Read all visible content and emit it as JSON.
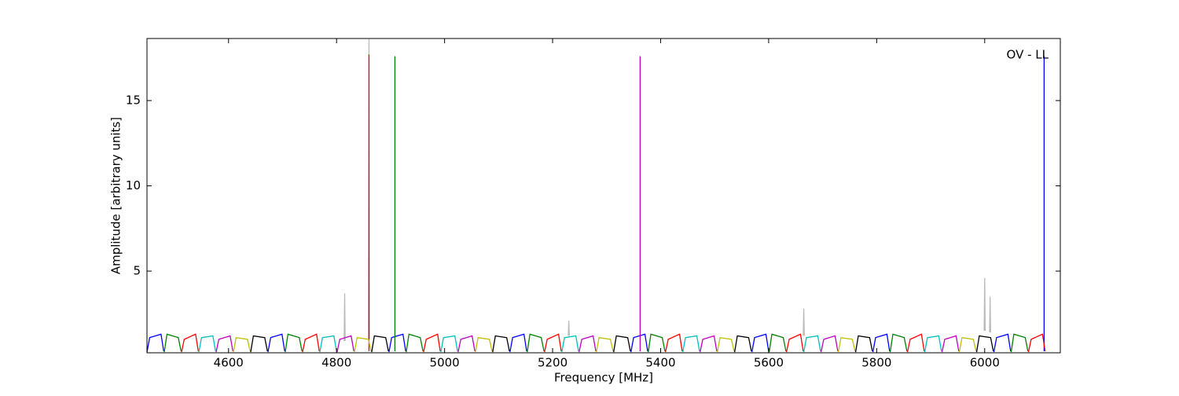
{
  "chart_data": {
    "type": "line",
    "annotation": "OV - LL",
    "xlabel": "Frequency [MHz]",
    "ylabel": "Amplitude [arbitrary units]",
    "xlim": [
      4449,
      6140
    ],
    "ylim": [
      0.21,
      18.64
    ],
    "xticks": [
      4600,
      4800,
      5000,
      5200,
      5400,
      5600,
      5800,
      6000
    ],
    "yticks": [
      5,
      10,
      15
    ],
    "series": [
      {
        "color": "#bbbbbb",
        "x": [
          4814,
          4815,
          4816,
          null,
          4859,
          4860,
          4861,
          null,
          5229,
          5230,
          5231,
          null,
          5664,
          5665,
          5666,
          null,
          5999,
          6000,
          6001,
          null,
          6009,
          6010,
          6011
        ],
        "values": [
          0.9,
          3.7,
          0.9,
          null,
          1.0,
          18.6,
          1.0,
          null,
          1.2,
          2.1,
          1.2,
          null,
          1.2,
          2.8,
          1.2,
          null,
          1.5,
          4.6,
          1.5,
          null,
          1.4,
          3.5,
          1.4
        ]
      },
      {
        "color": "#0000ff",
        "x": [
          4449,
          4454,
          4475,
          4480,
          null,
          4673,
          4678,
          4699,
          4704,
          null,
          4897,
          4902,
          4923,
          4928,
          null,
          5121,
          5126,
          5147,
          5152,
          null,
          5345,
          5350,
          5371,
          5376,
          null,
          5569,
          5574,
          5595,
          5600,
          null,
          5793,
          5798,
          5819,
          5824,
          null,
          6017,
          6022,
          6043,
          6048,
          null,
          6110,
          6110
        ],
        "values": [
          0.25,
          1.1,
          1.3,
          0.3,
          null,
          0.25,
          1.1,
          1.3,
          0.3,
          null,
          0.25,
          1.1,
          1.3,
          0.3,
          null,
          0.25,
          1.1,
          1.3,
          0.3,
          null,
          0.25,
          1.1,
          1.3,
          0.3,
          null,
          0.25,
          1.1,
          1.3,
          0.3,
          null,
          0.25,
          1.1,
          1.3,
          0.3,
          null,
          0.25,
          1.1,
          1.3,
          0.3,
          null,
          0.3,
          17.6
        ]
      },
      {
        "color": "#008000",
        "x": [
          4481,
          4486,
          4507,
          4512,
          null,
          4705,
          4710,
          4731,
          4736,
          null,
          4929,
          4934,
          4955,
          4960,
          null,
          5153,
          5158,
          5179,
          5184,
          null,
          5377,
          5382,
          5403,
          5408,
          null,
          5601,
          5606,
          5627,
          5632,
          null,
          5825,
          5830,
          5851,
          5856,
          null,
          6049,
          6054,
          6075,
          6080,
          null,
          4908,
          4908
        ],
        "values": [
          0.25,
          1.3,
          1.1,
          0.3,
          null,
          0.25,
          1.3,
          1.1,
          0.3,
          null,
          0.25,
          1.3,
          1.1,
          0.3,
          null,
          0.25,
          1.3,
          1.1,
          0.3,
          null,
          0.25,
          1.3,
          1.1,
          0.3,
          null,
          0.25,
          1.3,
          1.1,
          0.3,
          null,
          0.25,
          1.3,
          1.1,
          0.3,
          null,
          0.25,
          1.3,
          1.1,
          0.3,
          null,
          0.3,
          17.6
        ]
      },
      {
        "color": "#ff0000",
        "x": [
          4513,
          4518,
          4539,
          4544,
          null,
          4737,
          4742,
          4763,
          4768,
          null,
          4961,
          4966,
          4987,
          4992,
          null,
          5185,
          5190,
          5211,
          5216,
          null,
          5409,
          5414,
          5435,
          5440,
          null,
          5633,
          5638,
          5659,
          5664,
          null,
          5857,
          5862,
          5883,
          5888,
          null,
          6081,
          6086,
          6107,
          6112,
          null,
          4860,
          4860
        ],
        "values": [
          0.25,
          1.0,
          1.3,
          0.3,
          null,
          0.25,
          1.0,
          1.3,
          0.3,
          null,
          0.25,
          1.0,
          1.3,
          0.3,
          null,
          0.25,
          1.0,
          1.3,
          0.3,
          null,
          0.25,
          1.0,
          1.3,
          0.3,
          null,
          0.25,
          1.0,
          1.3,
          0.3,
          null,
          0.25,
          1.0,
          1.3,
          0.3,
          null,
          0.25,
          1.0,
          1.3,
          0.3,
          null,
          0.3,
          17.7
        ]
      },
      {
        "color": "#00bfbf",
        "x": [
          4545,
          4550,
          4571,
          4576,
          null,
          4769,
          4774,
          4795,
          4800,
          null,
          4993,
          4998,
          5019,
          5024,
          null,
          5217,
          5222,
          5243,
          5248,
          null,
          5441,
          5446,
          5467,
          5472,
          null,
          5665,
          5670,
          5691,
          5696,
          null,
          5889,
          5894,
          5915,
          5920
        ],
        "values": [
          0.25,
          1.1,
          1.2,
          0.3,
          null,
          0.25,
          1.1,
          1.2,
          0.3,
          null,
          0.25,
          1.1,
          1.2,
          0.3,
          null,
          0.25,
          1.1,
          1.2,
          0.3,
          null,
          0.25,
          1.1,
          1.2,
          0.3,
          null,
          0.25,
          1.1,
          1.2,
          0.3,
          null,
          0.25,
          1.1,
          1.2,
          0.3
        ]
      },
      {
        "color": "#bf00bf",
        "x": [
          4577,
          4582,
          4603,
          4608,
          null,
          4801,
          4806,
          4827,
          4832,
          null,
          5025,
          5030,
          5051,
          5056,
          null,
          5249,
          5254,
          5275,
          5280,
          null,
          5473,
          5478,
          5499,
          5504,
          null,
          5697,
          5702,
          5723,
          5728,
          null,
          5921,
          5926,
          5947,
          5952,
          null,
          5362,
          5362
        ],
        "values": [
          0.25,
          1.0,
          1.2,
          0.3,
          null,
          0.25,
          1.0,
          1.2,
          0.3,
          null,
          0.25,
          1.0,
          1.2,
          0.3,
          null,
          0.25,
          1.0,
          1.2,
          0.3,
          null,
          0.25,
          1.0,
          1.2,
          0.3,
          null,
          0.25,
          1.0,
          1.2,
          0.3,
          null,
          0.25,
          1.0,
          1.2,
          0.3,
          null,
          0.3,
          17.6
        ]
      },
      {
        "color": "#bfbf00",
        "x": [
          4609,
          4614,
          4635,
          4640,
          null,
          4833,
          4838,
          4859,
          4864,
          null,
          5057,
          5062,
          5083,
          5088,
          null,
          5281,
          5286,
          5307,
          5312,
          null,
          5505,
          5510,
          5531,
          5536,
          null,
          5729,
          5734,
          5755,
          5760,
          null,
          5953,
          5958,
          5979,
          5984
        ],
        "values": [
          0.25,
          1.1,
          1.0,
          0.3,
          null,
          0.25,
          1.1,
          1.0,
          0.3,
          null,
          0.25,
          1.1,
          1.0,
          0.3,
          null,
          0.25,
          1.1,
          1.0,
          0.3,
          null,
          0.25,
          1.1,
          1.0,
          0.3,
          null,
          0.25,
          1.1,
          1.0,
          0.3,
          null,
          0.25,
          1.1,
          1.0,
          0.3
        ]
      },
      {
        "color": "#000000",
        "x": [
          4641,
          4646,
          4667,
          4672,
          null,
          4865,
          4870,
          4891,
          4896,
          null,
          5089,
          5094,
          5115,
          5120,
          null,
          5313,
          5318,
          5339,
          5344,
          null,
          5537,
          5542,
          5563,
          5568,
          null,
          5761,
          5766,
          5787,
          5792,
          null,
          5985,
          5990,
          6011,
          6016
        ],
        "values": [
          0.25,
          1.2,
          1.1,
          0.3,
          null,
          0.25,
          1.2,
          1.1,
          0.3,
          null,
          0.25,
          1.2,
          1.1,
          0.3,
          null,
          0.25,
          1.2,
          1.1,
          0.3,
          null,
          0.25,
          1.2,
          1.1,
          0.3,
          null,
          0.25,
          1.2,
          1.1,
          0.3,
          null,
          0.25,
          1.2,
          1.1,
          0.3
        ]
      }
    ]
  }
}
